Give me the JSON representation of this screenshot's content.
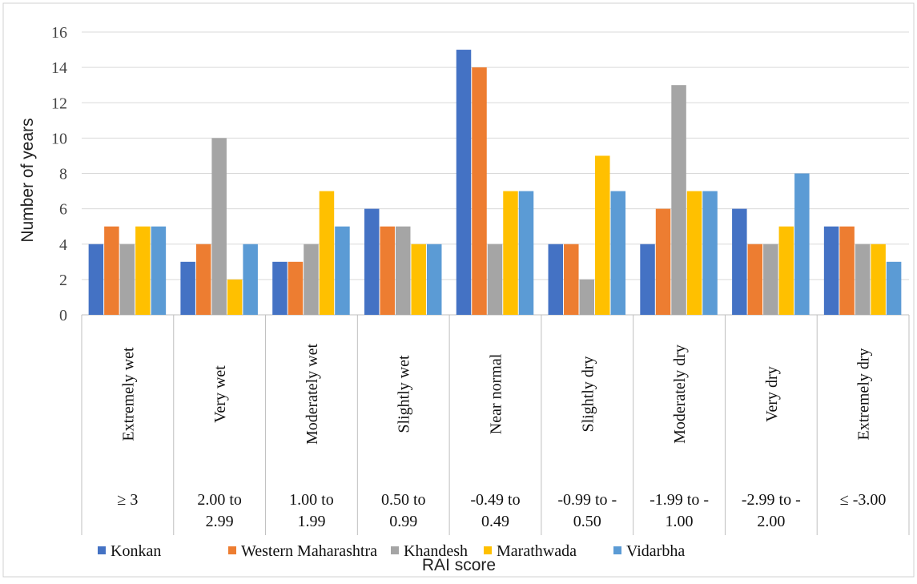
{
  "chart_data": {
    "type": "bar",
    "categories": [
      "Extremely wet",
      "Very wet",
      "Moderately wet",
      "Slightly wet",
      "Near normal",
      "Slightly dry",
      "Moderately dry",
      "Very dry",
      "Extremely dry"
    ],
    "category_ranges": [
      [
        "≥ 3"
      ],
      [
        "2.00 to",
        "2.99"
      ],
      [
        "1.00 to",
        "1.99"
      ],
      [
        "0.50 to",
        "0.99"
      ],
      [
        "-0.49 to",
        "0.49"
      ],
      [
        "-0.99 to -",
        "0.50"
      ],
      [
        "-1.99 to -",
        "1.00"
      ],
      [
        "-2.99 to -",
        "2.00"
      ],
      [
        "≤ -3.00"
      ]
    ],
    "series": [
      {
        "name": "Konkan",
        "color": "#4472C4",
        "values": [
          4,
          3,
          3,
          6,
          15,
          4,
          4,
          6,
          5
        ]
      },
      {
        "name": "Western Maharashtra",
        "color": "#ED7D31",
        "values": [
          5,
          4,
          3,
          5,
          14,
          4,
          6,
          4,
          5
        ]
      },
      {
        "name": "Khandesh",
        "color": "#A5A5A5",
        "values": [
          4,
          10,
          4,
          5,
          4,
          2,
          13,
          4,
          4
        ]
      },
      {
        "name": "Marathwada",
        "color": "#FFC000",
        "values": [
          5,
          2,
          7,
          4,
          7,
          9,
          7,
          5,
          4
        ]
      },
      {
        "name": "Vidarbha",
        "color": "#5B9BD5",
        "values": [
          5,
          4,
          5,
          4,
          7,
          7,
          7,
          8,
          3
        ]
      }
    ],
    "yticks": [
      0,
      2,
      4,
      6,
      8,
      10,
      12,
      14,
      16
    ],
    "ylim": [
      0,
      16
    ],
    "xlabel": "RAI score",
    "ylabel": "Number of years",
    "grid": true,
    "legend": "bottom"
  }
}
